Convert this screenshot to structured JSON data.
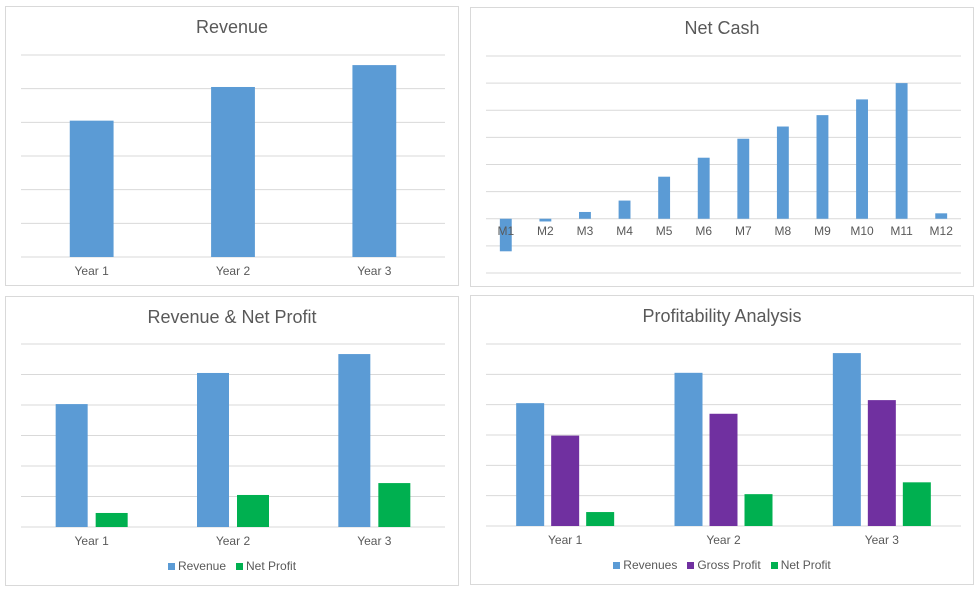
{
  "chart_data": [
    {
      "type": "bar",
      "title": "Revenue",
      "categories": [
        "Year 1",
        "Year 2",
        "Year 3"
      ],
      "series": [
        {
          "values": [
            4.05,
            5.05,
            5.7
          ],
          "color": "#5b9bd5"
        }
      ],
      "ylim": [
        0,
        6
      ],
      "grid": true,
      "legend": "none"
    },
    {
      "type": "bar",
      "title": "Net Cash",
      "categories": [
        "M1",
        "M2",
        "M3",
        "M4",
        "M5",
        "M6",
        "M7",
        "M8",
        "M9",
        "M10",
        "M11",
        "M12"
      ],
      "series": [
        {
          "values": [
            -1.2,
            -0.1,
            0.25,
            0.67,
            1.55,
            2.25,
            2.95,
            3.4,
            3.82,
            4.4,
            5.0,
            0.2
          ],
          "color": "#5b9bd5"
        }
      ],
      "ylim": [
        -2,
        6
      ],
      "grid": true,
      "legend": "none"
    },
    {
      "type": "bar",
      "title": "Revenue & Net Profit",
      "categories": [
        "Year 1",
        "Year 2",
        "Year 3"
      ],
      "series": [
        {
          "name": "Revenue",
          "values": [
            4.03,
            5.05,
            5.67
          ],
          "color": "#5b9bd5"
        },
        {
          "name": "Net Profit",
          "values": [
            0.46,
            1.05,
            1.44
          ],
          "color": "#00b050"
        }
      ],
      "ylim": [
        0,
        6
      ],
      "grid": true,
      "legend": "bottom"
    },
    {
      "type": "bar",
      "title": "Profitability Analysis",
      "categories": [
        "Year 1",
        "Year 2",
        "Year 3"
      ],
      "series": [
        {
          "name": "Revenues",
          "values": [
            4.05,
            5.05,
            5.7
          ],
          "color": "#5b9bd5"
        },
        {
          "name": "Gross Profit",
          "values": [
            2.98,
            3.7,
            4.15
          ],
          "color": "#7030a0"
        },
        {
          "name": "Net Profit",
          "values": [
            0.46,
            1.05,
            1.44
          ],
          "color": "#00b050"
        }
      ],
      "ylim": [
        0,
        6
      ],
      "grid": true,
      "legend": "bottom"
    }
  ]
}
